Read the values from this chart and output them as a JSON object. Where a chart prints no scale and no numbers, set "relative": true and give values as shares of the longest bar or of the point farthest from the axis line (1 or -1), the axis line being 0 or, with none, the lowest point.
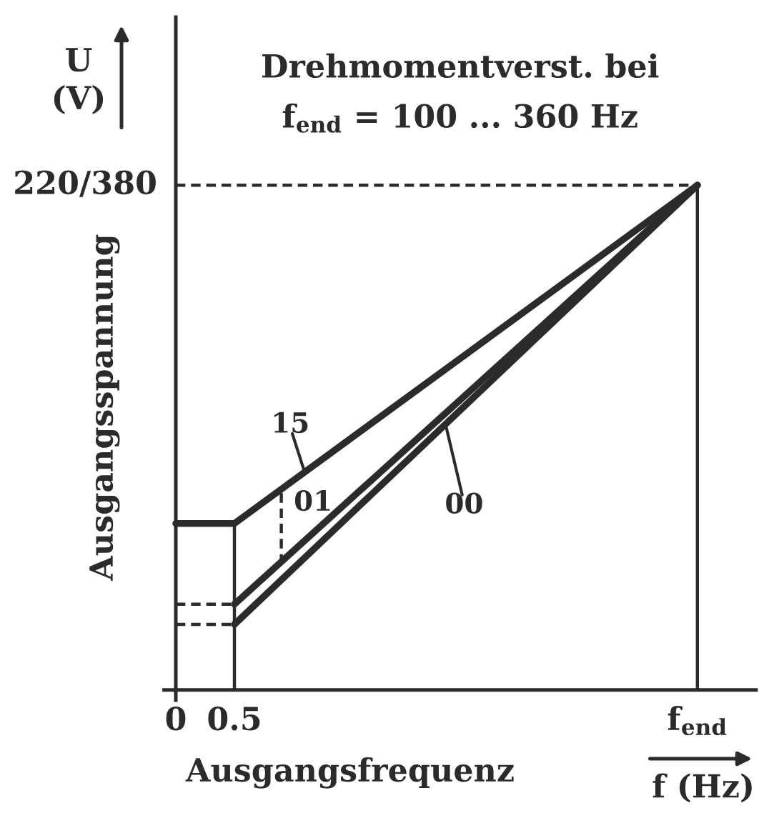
{
  "chart_data": {
    "type": "line",
    "relative": true,
    "title": "Drehmomentverst. bei\nf$_{end}$ = 100 ... 360 Hz",
    "xlabel": "Ausgangsfrequenz",
    "ylabel": "Ausgangsspannung",
    "xlim": [
      -0.1,
      4.95
    ],
    "xticks": [
      0,
      0.5,
      {
        "value": 4.45,
        "label": "f$_{end}$"
      }
    ],
    "tick_labels": "x",
    "series": [
      {
        "name": "15",
        "color": "#2b2b2b",
        "x": [
          0,
          0.5,
          4.45
        ],
        "values": [
          0.33,
          0.33,
          1
        ]
      },
      {
        "name": "01",
        "color": "#2b2b2b",
        "x": [
          0.5,
          4.45
        ],
        "values": [
          0.17,
          1
        ]
      },
      {
        "name": "00",
        "color": "#2b2b2b",
        "x": [
          0.5,
          4.45
        ],
        "values": [
          0.13,
          1
        ]
      },
      {
        "color": "#2b2b2b",
        "x": [
          0.5,
          0.5
        ],
        "values": [
          0,
          0.33
        ]
      },
      {
        "color": "#2b2b2b",
        "x": [
          4.45,
          4.45
        ],
        "values": [
          0,
          1
        ]
      },
      {
        "color": "#2b2b2b",
        "x": [
          0,
          4.45
        ],
        "values": [
          1,
          1
        ],
        "line_style": "dashed"
      },
      {
        "color": "#2b2b2b",
        "x": [
          0,
          0.5
        ],
        "values": [
          0.17,
          0.17
        ],
        "line_style": "dashed"
      },
      {
        "color": "#2b2b2b",
        "x": [
          0,
          0.5
        ],
        "values": [
          0.13,
          0.13
        ],
        "line_style": "dashed"
      },
      {
        "color": "#2b2b2b",
        "x": [
          0.9,
          0.9
        ],
        "values": [
          0.39,
          0.26
        ],
        "line_style": "dashed"
      }
    ],
    "annotations": [
      {
        "text": "220/380",
        "x": 0,
        "y": 1
      },
      "U\n(V)",
      "f (Hz)"
    ]
  }
}
